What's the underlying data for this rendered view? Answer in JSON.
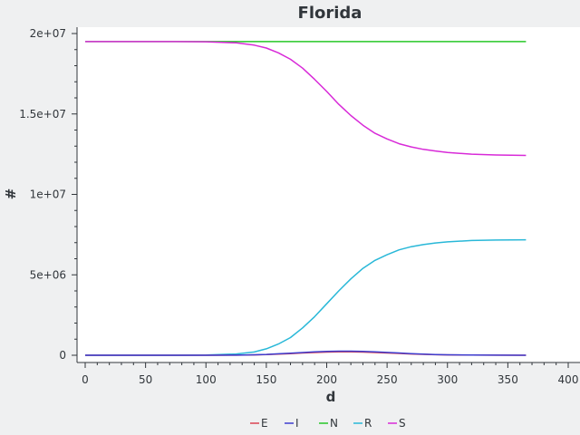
{
  "chart_data": {
    "type": "line",
    "title": "Florida",
    "xlabel": "d",
    "ylabel": "#",
    "xlim": [
      0,
      400
    ],
    "ylim": [
      0,
      20000000
    ],
    "x_ticks": [
      0,
      50,
      100,
      150,
      200,
      250,
      300,
      350,
      400
    ],
    "x_tick_labels": [
      "0",
      "50",
      "100",
      "150",
      "200",
      "250",
      "300",
      "350",
      "400"
    ],
    "y_ticks": [
      0,
      5000000,
      10000000,
      15000000,
      20000000
    ],
    "y_tick_labels": [
      "0",
      "5e+06",
      "1e+07",
      "1.5e+07",
      "2e+07"
    ],
    "grid": false,
    "legend_position": "bottom",
    "x": [
      0,
      25,
      50,
      75,
      100,
      125,
      140,
      150,
      160,
      170,
      180,
      190,
      200,
      210,
      220,
      230,
      240,
      250,
      260,
      270,
      280,
      290,
      300,
      320,
      340,
      365
    ],
    "series": [
      {
        "name": "E",
        "color": "#da4453",
        "values": [
          0,
          0,
          0,
          0,
          500,
          6000,
          20000,
          40000,
          70000,
          100000,
          140000,
          170000,
          195000,
          210000,
          210000,
          195000,
          170000,
          140000,
          110000,
          80000,
          55000,
          35000,
          22000,
          9000,
          4000,
          2000
        ]
      },
      {
        "name": "I",
        "color": "#3d3dcf",
        "values": [
          0,
          0,
          0,
          0,
          700,
          8000,
          26000,
          52000,
          90000,
          130000,
          170000,
          210000,
          240000,
          255000,
          255000,
          240000,
          210000,
          175000,
          140000,
          100000,
          70000,
          45000,
          28000,
          11000,
          5000,
          2000
        ]
      },
      {
        "name": "N",
        "color": "#27c727",
        "values": [
          19500000,
          19500000,
          19500000,
          19500000,
          19500000,
          19500000,
          19500000,
          19500000,
          19500000,
          19500000,
          19500000,
          19500000,
          19500000,
          19500000,
          19500000,
          19500000,
          19500000,
          19500000,
          19500000,
          19500000,
          19500000,
          19500000,
          19500000,
          19500000,
          19500000,
          19500000
        ]
      },
      {
        "name": "R",
        "color": "#29b8d8",
        "values": [
          0,
          0,
          0,
          0,
          10000,
          80000,
          200000,
          400000,
          700000,
          1100000,
          1700000,
          2400000,
          3200000,
          4000000,
          4750000,
          5400000,
          5900000,
          6250000,
          6550000,
          6750000,
          6880000,
          6980000,
          7050000,
          7130000,
          7160000,
          7180000
        ]
      },
      {
        "name": "S",
        "color": "#d82ad8",
        "values": [
          19500000,
          19500000,
          19500000,
          19500000,
          19490000,
          19420000,
          19280000,
          19100000,
          18800000,
          18400000,
          17850000,
          17150000,
          16400000,
          15600000,
          14900000,
          14300000,
          13800000,
          13450000,
          13150000,
          12950000,
          12800000,
          12700000,
          12600000,
          12500000,
          12450000,
          12420000
        ]
      }
    ]
  }
}
